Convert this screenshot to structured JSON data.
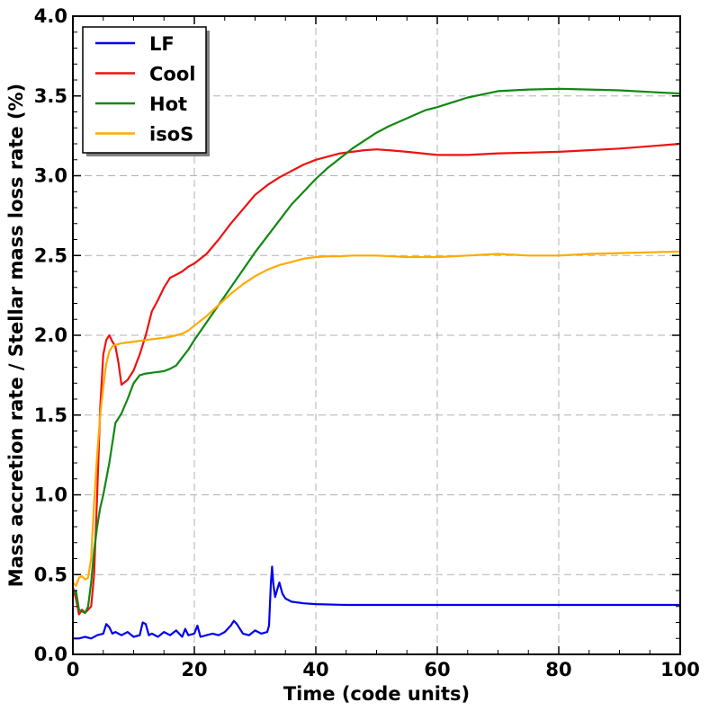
{
  "chart_data": {
    "type": "line",
    "title": "",
    "xlabel": "Time (code units)",
    "ylabel": "Mass accretion rate / Stellar mass loss rate (%)",
    "xlim": [
      0,
      100
    ],
    "ylim": [
      0.0,
      4.0
    ],
    "xticks": [
      0,
      20,
      40,
      60,
      80,
      100
    ],
    "xtick_labels": [
      "0",
      "20",
      "40",
      "60",
      "80",
      "100"
    ],
    "yticks": [
      0.0,
      0.5,
      1.0,
      1.5,
      2.0,
      2.5,
      3.0,
      3.5,
      4.0
    ],
    "ytick_labels": [
      "0.0",
      "0.5",
      "1.0",
      "1.5",
      "2.0",
      "2.5",
      "3.0",
      "3.5",
      "4.0"
    ],
    "grid": true,
    "legend_position": "top-left",
    "series": [
      {
        "name": "LF",
        "color": "#0000ee",
        "x": [
          0,
          1,
          2,
          3,
          4,
          5,
          5.5,
          6,
          6.5,
          7,
          8,
          9,
          10,
          11,
          11.5,
          12,
          12.5,
          13,
          14,
          15,
          16,
          17,
          18,
          18.5,
          19,
          20,
          20.5,
          21,
          22,
          23,
          24,
          25,
          26,
          26.5,
          27,
          28,
          29,
          30,
          31,
          32,
          32.3,
          32.6,
          32.8,
          33,
          33.3,
          33.6,
          34,
          34.5,
          35,
          36,
          38,
          40,
          45,
          50,
          60,
          70,
          80,
          90,
          100
        ],
        "y": [
          0.1,
          0.1,
          0.11,
          0.1,
          0.12,
          0.13,
          0.19,
          0.17,
          0.13,
          0.14,
          0.12,
          0.14,
          0.11,
          0.12,
          0.2,
          0.19,
          0.12,
          0.13,
          0.11,
          0.14,
          0.12,
          0.15,
          0.11,
          0.16,
          0.12,
          0.13,
          0.18,
          0.11,
          0.12,
          0.13,
          0.12,
          0.14,
          0.18,
          0.21,
          0.19,
          0.13,
          0.12,
          0.15,
          0.13,
          0.14,
          0.18,
          0.45,
          0.55,
          0.44,
          0.36,
          0.4,
          0.45,
          0.38,
          0.35,
          0.33,
          0.32,
          0.315,
          0.31,
          0.31,
          0.31,
          0.31,
          0.31,
          0.31,
          0.31
        ]
      },
      {
        "name": "Cool",
        "color": "#ee1111",
        "x": [
          0,
          0.5,
          1,
          1.5,
          2,
          3,
          3.5,
          4,
          4.5,
          5,
          5.5,
          6,
          6.5,
          7,
          7.5,
          8,
          9,
          10,
          11,
          12,
          13,
          14,
          15,
          16,
          17,
          18,
          19,
          20,
          22,
          24,
          26,
          28,
          30,
          32,
          34,
          36,
          38,
          40,
          42,
          44,
          46,
          48,
          50,
          52,
          55,
          60,
          65,
          70,
          75,
          80,
          85,
          90,
          95,
          100
        ],
        "y": [
          0.42,
          0.35,
          0.25,
          0.28,
          0.26,
          0.3,
          0.5,
          1.0,
          1.55,
          1.88,
          1.97,
          2.0,
          1.96,
          1.93,
          1.83,
          1.69,
          1.72,
          1.78,
          1.88,
          2.0,
          2.15,
          2.22,
          2.3,
          2.36,
          2.38,
          2.4,
          2.43,
          2.45,
          2.51,
          2.6,
          2.7,
          2.79,
          2.88,
          2.94,
          2.99,
          3.03,
          3.07,
          3.1,
          3.12,
          3.14,
          3.15,
          3.16,
          3.165,
          3.16,
          3.15,
          3.13,
          3.13,
          3.14,
          3.145,
          3.15,
          3.16,
          3.17,
          3.185,
          3.2
        ]
      },
      {
        "name": "Hot",
        "color": "#118811",
        "x": [
          0,
          0.5,
          1,
          1.5,
          2,
          2.5,
          3,
          3.5,
          4,
          4.5,
          5,
          6,
          7,
          8,
          9,
          10,
          11,
          12,
          13,
          14,
          15,
          16,
          17,
          18,
          19,
          20,
          22,
          24,
          26,
          28,
          30,
          32,
          34,
          36,
          38,
          40,
          42,
          44,
          46,
          48,
          50,
          52,
          55,
          58,
          60,
          65,
          70,
          75,
          80,
          85,
          90,
          95,
          100
        ],
        "y": [
          0.38,
          0.4,
          0.28,
          0.27,
          0.26,
          0.3,
          0.45,
          0.65,
          0.8,
          0.92,
          1.0,
          1.2,
          1.45,
          1.51,
          1.6,
          1.7,
          1.75,
          1.76,
          1.765,
          1.77,
          1.775,
          1.79,
          1.81,
          1.86,
          1.91,
          1.97,
          2.08,
          2.19,
          2.3,
          2.41,
          2.52,
          2.62,
          2.72,
          2.82,
          2.9,
          2.98,
          3.05,
          3.11,
          3.17,
          3.22,
          3.27,
          3.31,
          3.36,
          3.41,
          3.43,
          3.49,
          3.53,
          3.54,
          3.545,
          3.54,
          3.535,
          3.525,
          3.515
        ]
      },
      {
        "name": "isoS",
        "color": "#ffaa00",
        "x": [
          0,
          0.5,
          1,
          1.5,
          2,
          2.5,
          3,
          3.5,
          4,
          4.5,
          5,
          5.5,
          6,
          6.5,
          7,
          8,
          9,
          10,
          11,
          12,
          13,
          14,
          15,
          16,
          17,
          18,
          19,
          20,
          22,
          24,
          26,
          28,
          30,
          32,
          34,
          36,
          38,
          40,
          42,
          44,
          46,
          48,
          50,
          55,
          60,
          65,
          70,
          75,
          80,
          85,
          90,
          95,
          100
        ],
        "y": [
          0.45,
          0.43,
          0.48,
          0.49,
          0.47,
          0.48,
          0.6,
          0.95,
          1.25,
          1.5,
          1.68,
          1.82,
          1.9,
          1.93,
          1.94,
          1.95,
          1.955,
          1.96,
          1.965,
          1.97,
          1.975,
          1.98,
          1.985,
          1.99,
          2.0,
          2.01,
          2.03,
          2.06,
          2.12,
          2.19,
          2.26,
          2.32,
          2.37,
          2.41,
          2.44,
          2.46,
          2.48,
          2.49,
          2.495,
          2.495,
          2.5,
          2.5,
          2.5,
          2.49,
          2.49,
          2.5,
          2.51,
          2.5,
          2.5,
          2.51,
          2.515,
          2.52,
          2.525
        ]
      }
    ]
  }
}
